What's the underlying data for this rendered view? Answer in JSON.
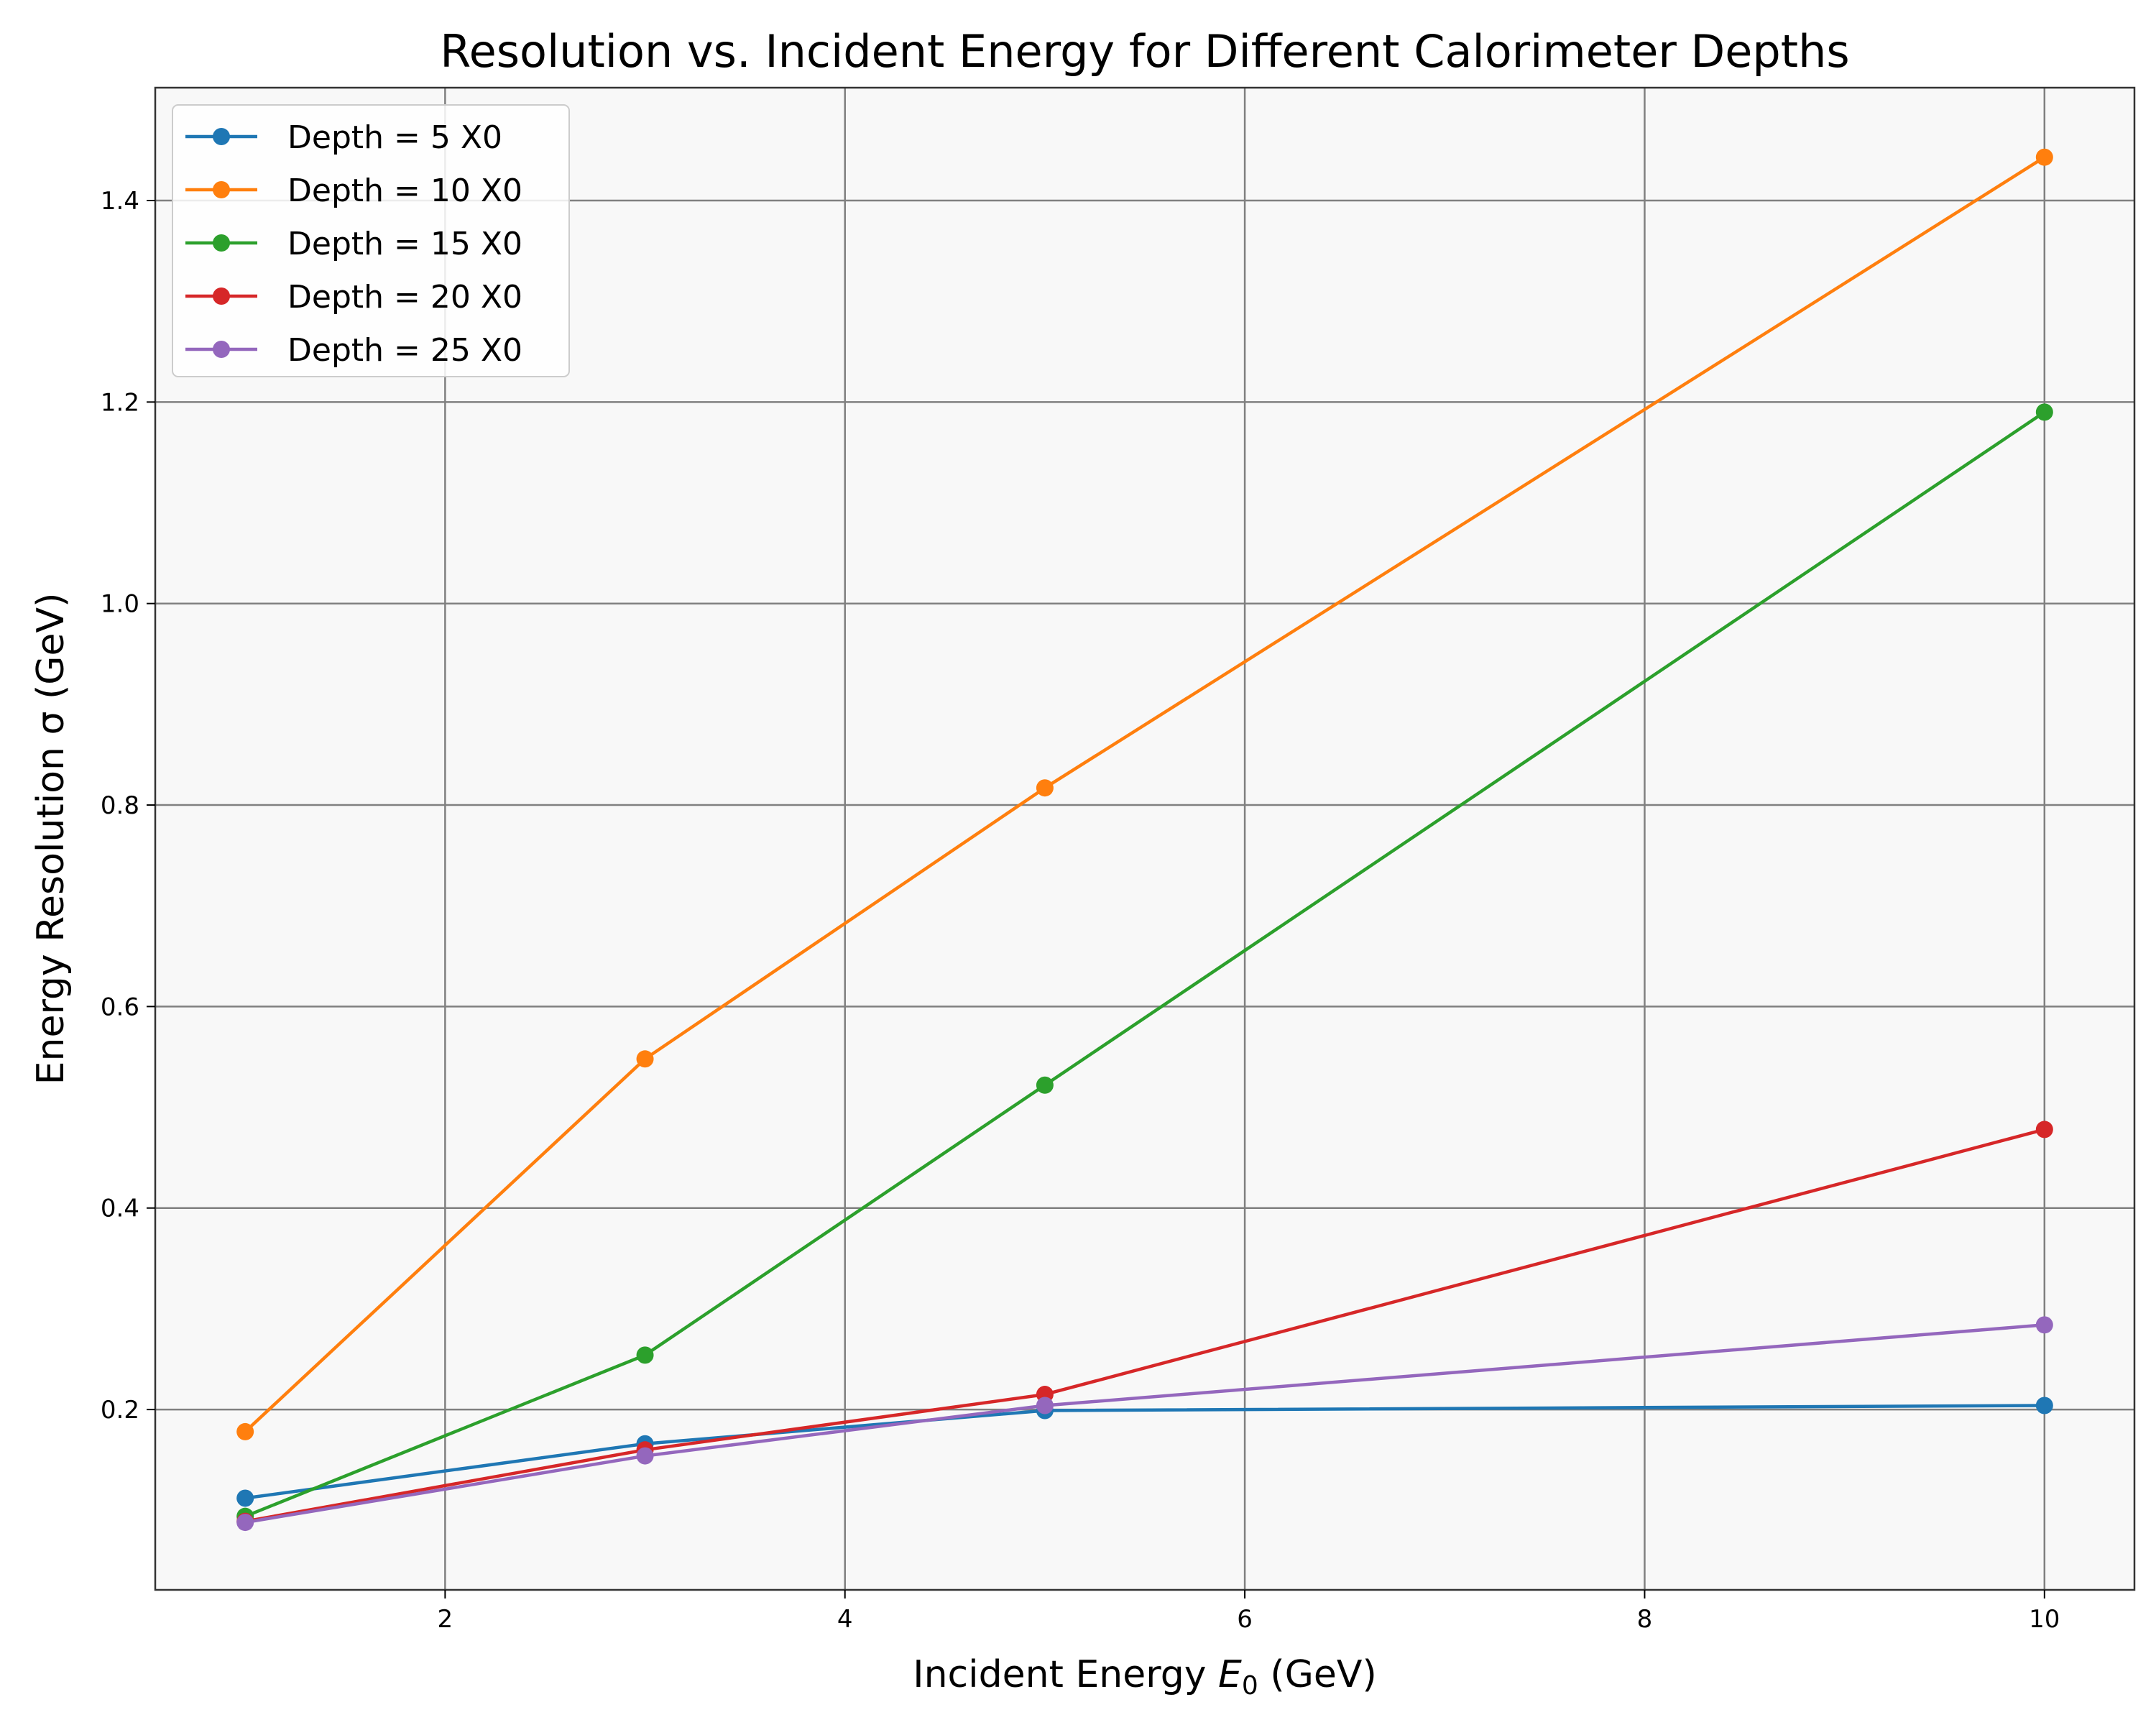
{
  "chart_data": {
    "type": "line",
    "title": "Resolution vs. Incident Energy for Different Calorimeter Depths",
    "xlabel_prefix": "Incident Energy ",
    "xlabel_var": "E",
    "xlabel_sub": "0",
    "xlabel_suffix": " (GeV)",
    "ylabel": "Energy Resolution σ (GeV)",
    "x": [
      1,
      3,
      5,
      10
    ],
    "xlim": [
      0.55,
      10.45
    ],
    "ylim": [
      0.021,
      1.512
    ],
    "xticks": [
      2,
      4,
      6,
      8,
      10
    ],
    "xtick_labels": [
      "2",
      "4",
      "6",
      "8",
      "10"
    ],
    "yticks": [
      0.2,
      0.4,
      0.6,
      0.8,
      1.0,
      1.2,
      1.4
    ],
    "ytick_labels": [
      "0.2",
      "0.4",
      "0.6",
      "0.8",
      "1.0",
      "1.2",
      "1.4"
    ],
    "grid": true,
    "legend_position": "upper-left",
    "series": [
      {
        "name": "Depth = 5 X0",
        "color": "#1f77b4",
        "values": [
          0.112,
          0.166,
          0.199,
          0.204
        ]
      },
      {
        "name": "Depth = 10 X0",
        "color": "#ff7f0e",
        "values": [
          0.178,
          0.548,
          0.817,
          1.443
        ]
      },
      {
        "name": "Depth = 15 X0",
        "color": "#2ca02c",
        "values": [
          0.094,
          0.254,
          0.522,
          1.19
        ]
      },
      {
        "name": "Depth = 20 X0",
        "color": "#d62728",
        "values": [
          0.089,
          0.16,
          0.215,
          0.478
        ]
      },
      {
        "name": "Depth = 25 X0",
        "color": "#9467bd",
        "values": [
          0.088,
          0.154,
          0.204,
          0.284
        ]
      }
    ]
  }
}
